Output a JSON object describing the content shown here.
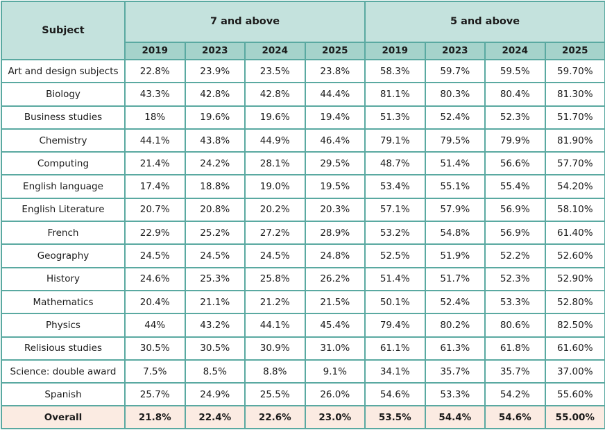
{
  "table": {
    "subject_header": "Subject",
    "groups": [
      "7 and above",
      "5 and above"
    ],
    "years": [
      "2019",
      "2023",
      "2024",
      "2025",
      "2019",
      "2023",
      "2024",
      "2025"
    ],
    "rows": [
      {
        "subject": "Art and design subjects",
        "values": [
          "22.8%",
          "23.9%",
          "23.5%",
          "23.8%",
          "58.3%",
          "59.7%",
          "59.5%",
          "59.70%"
        ]
      },
      {
        "subject": "Biology",
        "values": [
          "43.3%",
          "42.8%",
          "42.8%",
          "44.4%",
          "81.1%",
          "80.3%",
          "80.4%",
          "81.30%"
        ]
      },
      {
        "subject": "Business studies",
        "values": [
          "18%",
          "19.6%",
          "19.6%",
          "19.4%",
          "51.3%",
          "52.4%",
          "52.3%",
          "51.70%"
        ]
      },
      {
        "subject": "Chemistry",
        "values": [
          "44.1%",
          "43.8%",
          "44.9%",
          "46.4%",
          "79.1%",
          "79.5%",
          "79.9%",
          "81.90%"
        ]
      },
      {
        "subject": "Computing",
        "values": [
          "21.4%",
          "24.2%",
          "28.1%",
          "29.5%",
          "48.7%",
          "51.4%",
          "56.6%",
          "57.70%"
        ]
      },
      {
        "subject": "English language",
        "values": [
          "17.4%",
          "18.8%",
          "19.0%",
          "19.5%",
          "53.4%",
          "55.1%",
          "55.4%",
          "54.20%"
        ]
      },
      {
        "subject": "English Literature",
        "values": [
          "20.7%",
          "20.8%",
          "20.2%",
          "20.3%",
          "57.1%",
          "57.9%",
          "56.9%",
          "58.10%"
        ]
      },
      {
        "subject": "French",
        "values": [
          "22.9%",
          "25.2%",
          "27.2%",
          "28.9%",
          "53.2%",
          "54.8%",
          "56.9%",
          "61.40%"
        ]
      },
      {
        "subject": "Geography",
        "values": [
          "24.5%",
          "24.5%",
          "24.5%",
          "24.8%",
          "52.5%",
          "51.9%",
          "52.2%",
          "52.60%"
        ]
      },
      {
        "subject": "History",
        "values": [
          "24.6%",
          "25.3%",
          "25.8%",
          "26.2%",
          "51.4%",
          "51.7%",
          "52.3%",
          "52.90%"
        ]
      },
      {
        "subject": "Mathematics",
        "values": [
          "20.4%",
          "21.1%",
          "21.2%",
          "21.5%",
          "50.1%",
          "52.4%",
          "53.3%",
          "52.80%"
        ]
      },
      {
        "subject": "Physics",
        "values": [
          "44%",
          "43.2%",
          "44.1%",
          "45.4%",
          "79.4%",
          "80.2%",
          "80.6%",
          "82.50%"
        ]
      },
      {
        "subject": "Relisious studies",
        "values": [
          "30.5%",
          "30.5%",
          "30.9%",
          "31.0%",
          "61.1%",
          "61.3%",
          "61.8%",
          "61.60%"
        ]
      },
      {
        "subject": "Science: double award",
        "values": [
          "7.5%",
          "8.5%",
          "8.8%",
          "9.1%",
          "34.1%",
          "35.7%",
          "35.7%",
          "37.00%"
        ]
      },
      {
        "subject": "Spanish",
        "values": [
          "25.7%",
          "24.9%",
          "25.5%",
          "26.0%",
          "54.6%",
          "53.3%",
          "54.2%",
          "55.60%"
        ]
      }
    ],
    "overall": {
      "subject": "Overall",
      "values": [
        "21.8%",
        "22.4%",
        "22.6%",
        "23.0%",
        "53.5%",
        "54.4%",
        "54.6%",
        "55.00%"
      ]
    }
  },
  "colors": {
    "border": "#5aa9a1",
    "header_bg": "#c4e2dd",
    "year_header_bg": "#a5d3cb",
    "overall_bg": "#fbebe2"
  }
}
